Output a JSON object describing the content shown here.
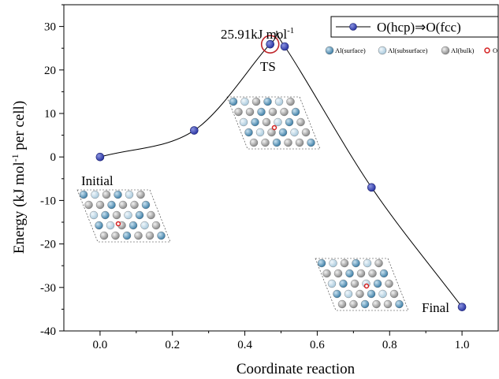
{
  "chart_data": {
    "type": "line",
    "title": "",
    "xlabel": "Coordinate reaction",
    "ylabel": "Energy (kJ mol",
    "ylabel_sup": "-1",
    "ylabel_tail": " per cell)",
    "xlim": [
      -0.1,
      1.1
    ],
    "ylim": [
      -40,
      35
    ],
    "xticks": [
      0.0,
      0.2,
      0.4,
      0.6,
      0.8,
      1.0
    ],
    "xtick_labels": [
      "0.0",
      "0.2",
      "0.4",
      "0.6",
      "0.8",
      "1.0"
    ],
    "yticks": [
      -40,
      -30,
      -20,
      -10,
      0,
      10,
      20,
      30
    ],
    "ytick_labels": [
      "-40",
      "-30",
      "-20",
      "-10",
      "0",
      "10",
      "20",
      "30"
    ],
    "series": [
      {
        "name": "O(hcp)⇒O(fcc)",
        "color": "#2b36a3",
        "x": [
          0.0,
          0.26,
          0.47,
          0.51,
          0.75,
          1.0
        ],
        "y": [
          0.0,
          6.1,
          25.91,
          25.4,
          -7.0,
          -34.5
        ]
      }
    ],
    "legend": {
      "placement": "top-right"
    },
    "atom_legend": [
      {
        "label": "Al(surface)",
        "color": "#4a8db5"
      },
      {
        "label": "Al(subsurface)",
        "color": "#b7d3e4"
      },
      {
        "label": "Al(bulk)",
        "color": "#9a9a9a"
      },
      {
        "label": "O",
        "color": "#d42020"
      }
    ],
    "annotations": {
      "ts_energy": "25.91kJ mol",
      "ts_energy_sup": "-1",
      "ts_label": "TS",
      "initial_label": "Initial",
      "final_label": "Final"
    },
    "colors": {
      "highlight_circle": "#c0262b",
      "curve": "#000000"
    }
  }
}
